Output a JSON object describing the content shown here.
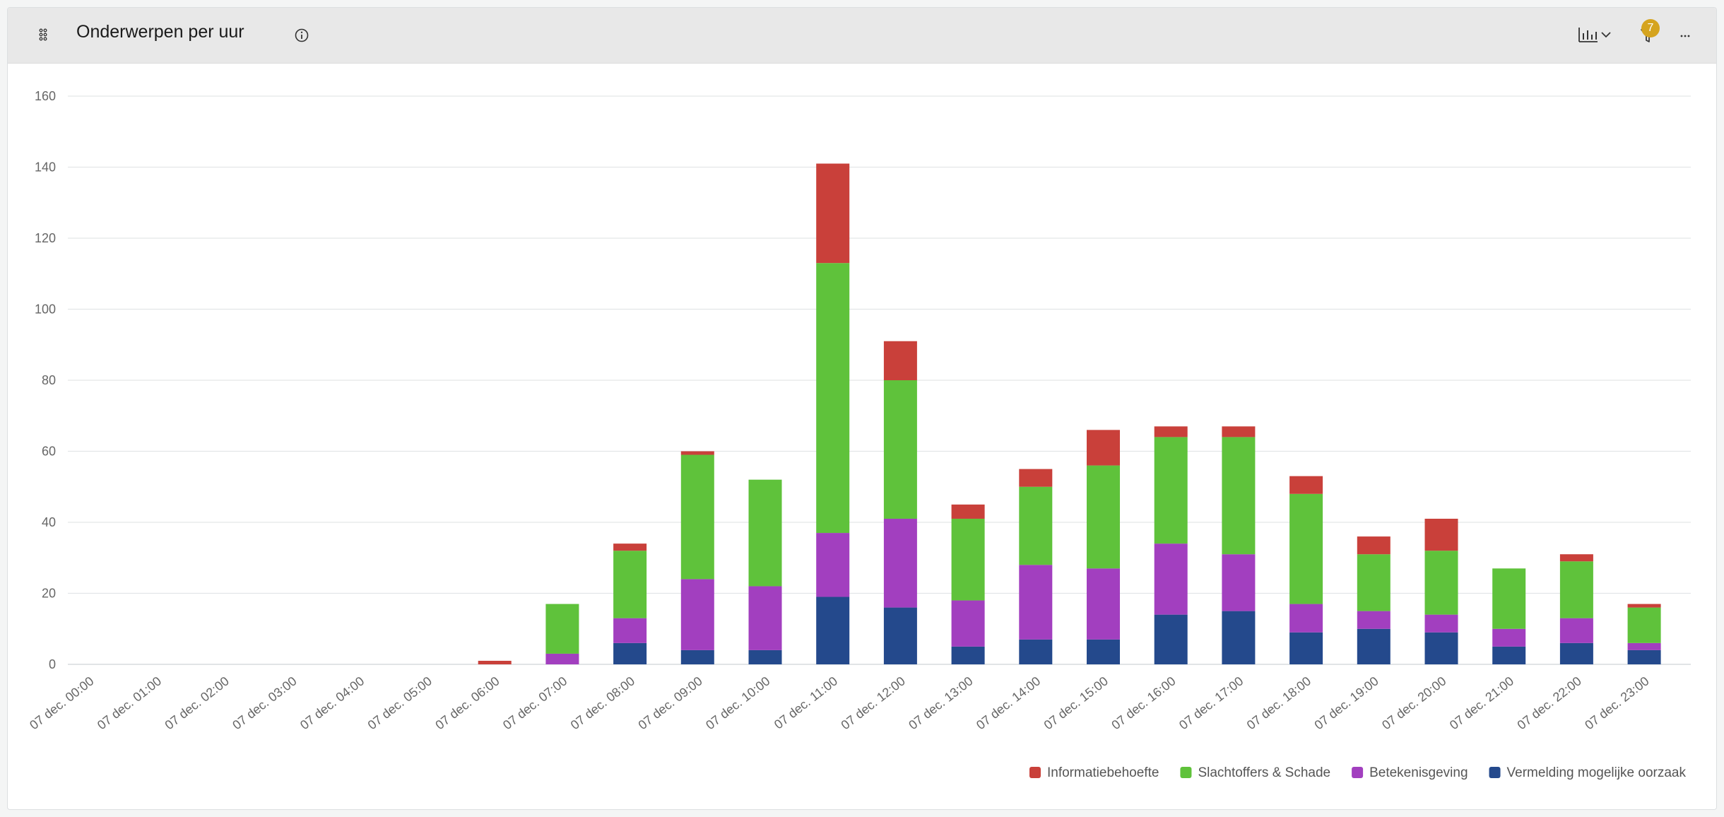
{
  "header": {
    "title": "Onderwerpen per uur",
    "filter_count": "7",
    "more_label": "···"
  },
  "icons": {
    "drag": "drag-handle-icon",
    "info": "info-icon",
    "chart_type": "bar-chart-icon",
    "chevron": "chevron-down-icon",
    "filter": "filter-icon",
    "more": "more-icon"
  },
  "colors": {
    "Informatiebehoefte": "#c9403a",
    "Slachtoffers & Schade": "#5fc23b",
    "Betekenisgeving": "#a23fbf",
    "Vermelding mogelijke oorzaak": "#24498c"
  },
  "chart_data": {
    "type": "bar",
    "stacked": true,
    "title": "",
    "xlabel": "",
    "ylabel": "",
    "ylim": [
      0,
      160
    ],
    "yticks": [
      0,
      20,
      40,
      60,
      80,
      100,
      120,
      140,
      160
    ],
    "grid": true,
    "legend_position": "bottom-right",
    "categories": [
      "07 dec. 00:00",
      "07 dec. 01:00",
      "07 dec. 02:00",
      "07 dec. 03:00",
      "07 dec. 04:00",
      "07 dec. 05:00",
      "07 dec. 06:00",
      "07 dec. 07:00",
      "07 dec. 08:00",
      "07 dec. 09:00",
      "07 dec. 10:00",
      "07 dec. 11:00",
      "07 dec. 12:00",
      "07 dec. 13:00",
      "07 dec. 14:00",
      "07 dec. 15:00",
      "07 dec. 16:00",
      "07 dec. 17:00",
      "07 dec. 18:00",
      "07 dec. 19:00",
      "07 dec. 20:00",
      "07 dec. 21:00",
      "07 dec. 22:00",
      "07 dec. 23:00"
    ],
    "series": [
      {
        "name": "Vermelding mogelijke oorzaak",
        "values": [
          0,
          0,
          0,
          0,
          0,
          0,
          0,
          0,
          6,
          4,
          4,
          19,
          16,
          5,
          7,
          7,
          14,
          15,
          9,
          10,
          9,
          5,
          6,
          4
        ]
      },
      {
        "name": "Betekenisgeving",
        "values": [
          0,
          0,
          0,
          0,
          0,
          0,
          0,
          3,
          7,
          20,
          18,
          18,
          25,
          13,
          21,
          20,
          20,
          16,
          8,
          5,
          5,
          5,
          7,
          2
        ]
      },
      {
        "name": "Slachtoffers & Schade",
        "values": [
          0,
          0,
          0,
          0,
          0,
          0,
          0,
          14,
          19,
          35,
          30,
          76,
          39,
          23,
          22,
          29,
          30,
          33,
          31,
          16,
          18,
          17,
          16,
          10
        ]
      },
      {
        "name": "Informatiebehoefte",
        "values": [
          0,
          0,
          0,
          0,
          0,
          0,
          1,
          0,
          2,
          1,
          0,
          28,
          11,
          4,
          5,
          10,
          3,
          3,
          5,
          5,
          9,
          0,
          2,
          1
        ]
      }
    ],
    "legend_order": [
      "Informatiebehoefte",
      "Slachtoffers & Schade",
      "Betekenisgeving",
      "Vermelding mogelijke oorzaak"
    ]
  }
}
